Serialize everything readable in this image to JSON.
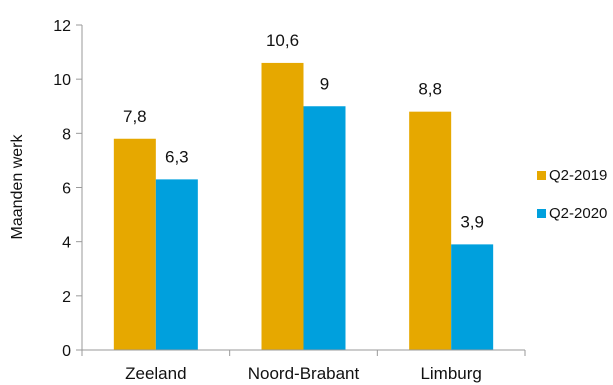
{
  "chart_data": {
    "type": "bar",
    "title": "",
    "xlabel": "",
    "ylabel": "Maanden werk",
    "ylim": [
      0,
      12
    ],
    "yticks": [
      0,
      2,
      4,
      6,
      8,
      10,
      12
    ],
    "grid": false,
    "legend_position": "right",
    "categories": [
      "Zeeland",
      "Noord-Brabant",
      "Limburg"
    ],
    "series": [
      {
        "name": "Q2-2019",
        "color": "#E6A800",
        "values": [
          7.8,
          10.6,
          8.8
        ],
        "labels": [
          "7,8",
          "10,6",
          "8,8"
        ]
      },
      {
        "name": "Q2-2020",
        "color": "#00A0DD",
        "values": [
          6.3,
          9,
          3.9
        ],
        "labels": [
          "6,3",
          "9",
          "3,9"
        ]
      }
    ]
  }
}
